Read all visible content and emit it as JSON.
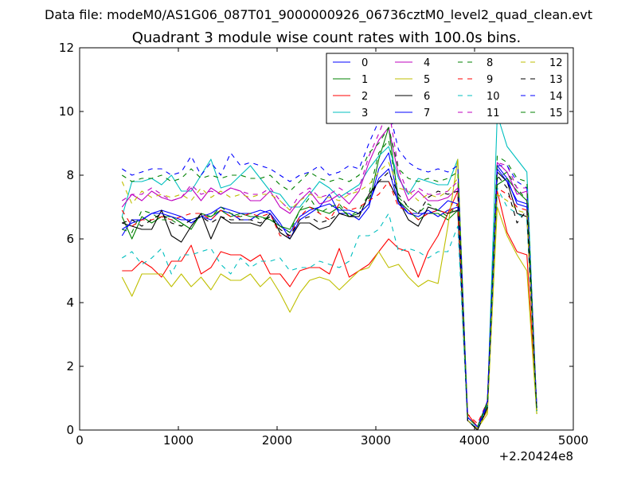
{
  "figure": {
    "suptitle": "Data file: modeM0/AS1G06_087T01_9000000926_06736cztM0_level2_quad_clean.evt"
  },
  "chart_data": {
    "type": "line",
    "title": "Quadrant 3 module wise count rates with 100.0s bins.",
    "xlabel": "",
    "ylabel": "",
    "xlim": [
      0,
      5000
    ],
    "ylim": [
      0,
      12
    ],
    "x_offset_label": "+2.20424e8",
    "x_ticks": [
      0,
      1000,
      2000,
      3000,
      4000,
      5000
    ],
    "x_tick_labels": [
      "0",
      "1000",
      "2000",
      "3000",
      "4000",
      "5000"
    ],
    "y_ticks": [
      0,
      2,
      4,
      6,
      8,
      10,
      12
    ],
    "y_tick_labels": [
      "0",
      "2",
      "4",
      "6",
      "8",
      "10",
      "12"
    ],
    "grid": false,
    "legend_position": "top-right",
    "x": [
      430,
      530,
      630,
      730,
      830,
      930,
      1030,
      1130,
      1230,
      1330,
      1430,
      1530,
      1630,
      1730,
      1830,
      1930,
      2030,
      2130,
      2230,
      2330,
      2430,
      2530,
      2630,
      2730,
      2830,
      2930,
      3030,
      3130,
      3230,
      3330,
      3430,
      3530,
      3630,
      3730,
      3830,
      3930,
      4030,
      4130,
      4230,
      4330,
      4430,
      4530,
      4630
    ],
    "series": [
      {
        "name": "0",
        "color": "#0000ff",
        "dash": "solid",
        "values": [
          6.1,
          6.6,
          6.6,
          6.8,
          6.9,
          6.8,
          6.7,
          6.5,
          6.7,
          6.6,
          6.9,
          6.8,
          6.6,
          6.6,
          6.8,
          6.9,
          6.5,
          6.0,
          6.6,
          6.8,
          7.0,
          7.4,
          6.8,
          6.8,
          6.6,
          7.0,
          8.2,
          8.7,
          7.2,
          6.8,
          6.7,
          6.9,
          6.7,
          6.9,
          7.0,
          0.3,
          0.05,
          0.9,
          8.3,
          7.9,
          7.1,
          7.0,
          0.7
        ]
      },
      {
        "name": "1",
        "color": "#008000",
        "dash": "solid",
        "values": [
          6.7,
          6.0,
          6.7,
          6.5,
          6.7,
          6.7,
          6.5,
          6.3,
          6.8,
          6.7,
          6.9,
          6.7,
          6.8,
          6.7,
          6.7,
          6.6,
          6.4,
          6.3,
          6.9,
          7.0,
          6.9,
          6.8,
          7.0,
          6.7,
          6.8,
          7.1,
          8.5,
          9.5,
          7.2,
          6.9,
          6.6,
          6.8,
          6.8,
          6.6,
          6.9,
          0.4,
          0.1,
          0.7,
          7.7,
          7.9,
          7.5,
          7.2,
          0.5
        ]
      },
      {
        "name": "2",
        "color": "#ff0000",
        "dash": "solid",
        "values": [
          5.0,
          5.0,
          5.3,
          5.1,
          4.8,
          5.3,
          5.3,
          5.8,
          4.9,
          5.1,
          5.6,
          5.5,
          5.5,
          5.3,
          5.5,
          4.9,
          4.9,
          4.5,
          5.0,
          5.1,
          5.1,
          4.9,
          5.7,
          4.8,
          5.0,
          5.2,
          5.6,
          6.0,
          5.7,
          5.6,
          4.8,
          5.6,
          6.1,
          6.8,
          7.5,
          0.5,
          0.1,
          0.6,
          7.5,
          6.2,
          5.6,
          5.5,
          0.6
        ]
      },
      {
        "name": "3",
        "color": "#00bfbf",
        "dash": "solid",
        "values": [
          6.7,
          7.8,
          7.8,
          7.9,
          7.7,
          8.0,
          7.5,
          7.5,
          8.0,
          8.5,
          7.6,
          7.7,
          8.0,
          8.3,
          7.9,
          7.5,
          7.4,
          7.0,
          7.0,
          7.4,
          7.8,
          7.6,
          7.3,
          7.5,
          7.7,
          8.2,
          8.6,
          8.9,
          7.9,
          7.4,
          7.9,
          7.8,
          7.7,
          7.7,
          8.5,
          0.3,
          0.05,
          0.8,
          9.9,
          8.9,
          8.5,
          8.1,
          0.6
        ]
      },
      {
        "name": "4",
        "color": "#bf00bf",
        "dash": "solid",
        "values": [
          7.0,
          7.4,
          7.2,
          7.5,
          7.3,
          7.2,
          7.3,
          7.6,
          7.2,
          7.6,
          7.4,
          7.6,
          7.5,
          7.2,
          7.2,
          7.5,
          7.0,
          6.8,
          7.2,
          7.5,
          7.1,
          7.2,
          7.4,
          7.1,
          7.5,
          8.4,
          9.1,
          9.5,
          8.0,
          7.2,
          7.5,
          7.2,
          7.2,
          7.3,
          7.6,
          0.4,
          0.1,
          0.9,
          8.4,
          8.1,
          7.4,
          7.5,
          0.7
        ]
      },
      {
        "name": "5",
        "color": "#bfbf00",
        "dash": "solid",
        "values": [
          4.8,
          4.2,
          4.9,
          4.9,
          4.9,
          4.5,
          4.9,
          4.5,
          4.8,
          4.4,
          4.9,
          4.7,
          4.7,
          4.9,
          4.5,
          4.8,
          4.3,
          3.7,
          4.3,
          4.7,
          4.8,
          4.7,
          4.4,
          4.7,
          5.0,
          5.1,
          5.6,
          5.1,
          5.2,
          4.8,
          4.5,
          4.7,
          4.6,
          6.4,
          8.5,
          0.3,
          0.05,
          0.5,
          7.0,
          6.1,
          5.5,
          5.0,
          0.5
        ]
      },
      {
        "name": "6",
        "color": "#000000",
        "dash": "solid",
        "values": [
          6.5,
          6.4,
          6.3,
          6.3,
          6.9,
          6.1,
          5.9,
          6.4,
          6.8,
          6.0,
          6.7,
          6.5,
          6.5,
          6.5,
          6.4,
          6.8,
          6.2,
          6.0,
          6.5,
          6.5,
          6.3,
          6.4,
          6.8,
          6.7,
          6.7,
          7.4,
          7.8,
          7.8,
          7.2,
          6.6,
          6.4,
          7.0,
          6.9,
          6.8,
          6.9,
          0.3,
          0.0,
          0.7,
          8.1,
          7.8,
          6.8,
          6.7,
          0.6
        ]
      },
      {
        "name": "7",
        "color": "#0000ff",
        "dash": "solid",
        "values": [
          6.3,
          6.5,
          6.6,
          6.8,
          6.8,
          6.7,
          6.6,
          6.6,
          6.7,
          6.8,
          7.0,
          6.9,
          6.8,
          6.8,
          6.9,
          6.8,
          6.4,
          6.2,
          6.7,
          6.9,
          7.0,
          7.1,
          6.9,
          6.9,
          6.8,
          7.1,
          7.9,
          8.2,
          7.1,
          6.8,
          6.8,
          6.8,
          6.9,
          7.2,
          7.1,
          0.3,
          0.05,
          0.8,
          8.2,
          7.8,
          7.2,
          7.1,
          0.7
        ]
      },
      {
        "name": "8",
        "color": "#008000",
        "dash": "dashed",
        "values": [
          6.3,
          6.2,
          6.9,
          6.8,
          6.6,
          6.6,
          6.4,
          6.6,
          6.7,
          6.7,
          7.0,
          6.8,
          6.7,
          6.8,
          6.6,
          6.7,
          6.4,
          6.2,
          6.9,
          7.3,
          6.8,
          7.0,
          7.1,
          6.7,
          6.9,
          7.4,
          8.7,
          9.1,
          7.3,
          7.0,
          6.8,
          7.1,
          6.9,
          6.7,
          7.1,
          0.4,
          0.1,
          0.8,
          7.9,
          8.1,
          7.6,
          7.2,
          0.6
        ]
      },
      {
        "name": "9",
        "color": "#ff0000",
        "dash": "dashed",
        "values": [
          6.9,
          6.4,
          6.6,
          6.6,
          6.7,
          6.6,
          6.7,
          6.8,
          6.8,
          6.6,
          6.9,
          6.7,
          6.7,
          6.8,
          6.7,
          6.8,
          6.1,
          6.1,
          6.7,
          7.0,
          6.8,
          6.6,
          7.1,
          6.9,
          7.0,
          7.2,
          7.4,
          7.8,
          7.0,
          6.9,
          6.6,
          6.8,
          6.9,
          6.8,
          7.1,
          0.5,
          0.2,
          0.9,
          7.6,
          7.4,
          7.0,
          6.9,
          0.7
        ]
      },
      {
        "name": "10",
        "color": "#00bfbf",
        "dash": "dashed",
        "values": [
          5.4,
          5.6,
          5.2,
          5.4,
          5.7,
          4.9,
          5.5,
          5.5,
          5.6,
          5.7,
          5.2,
          4.9,
          5.4,
          5.1,
          5.3,
          5.3,
          5.4,
          5.0,
          5.1,
          5.1,
          5.3,
          5.2,
          5.1,
          5.3,
          6.1,
          6.1,
          6.3,
          6.8,
          5.6,
          5.7,
          5.6,
          5.4,
          5.6,
          5.6,
          6.4,
          0.3,
          0.05,
          0.7,
          7.6,
          7.0,
          6.8,
          6.6,
          0.6
        ]
      },
      {
        "name": "11",
        "color": "#bf00bf",
        "dash": "dashed",
        "values": [
          7.2,
          7.4,
          7.4,
          7.6,
          7.4,
          7.2,
          7.3,
          7.7,
          7.4,
          7.5,
          7.4,
          7.6,
          7.5,
          7.4,
          7.4,
          7.6,
          7.2,
          6.9,
          7.4,
          7.6,
          7.3,
          7.4,
          7.6,
          7.4,
          7.6,
          8.6,
          9.3,
          10.1,
          8.2,
          7.4,
          7.6,
          7.4,
          7.4,
          7.5,
          7.8,
          0.4,
          0.1,
          0.9,
          8.4,
          8.3,
          7.6,
          7.6,
          0.7
        ]
      },
      {
        "name": "12",
        "color": "#bfbf00",
        "dash": "dashed",
        "values": [
          7.8,
          7.1,
          7.5,
          7.3,
          7.4,
          7.3,
          7.4,
          7.2,
          7.6,
          7.3,
          7.5,
          7.3,
          7.4,
          7.3,
          7.4,
          7.4,
          7.2,
          6.9,
          7.2,
          7.4,
          7.3,
          7.3,
          7.2,
          7.4,
          7.5,
          7.7,
          8.1,
          8.4,
          7.6,
          7.5,
          7.2,
          7.4,
          7.3,
          7.5,
          7.9,
          0.3,
          0.05,
          0.6,
          7.4,
          7.2,
          6.9,
          6.8,
          0.5
        ]
      },
      {
        "name": "13",
        "color": "#000000",
        "dash": "dashed",
        "values": [
          6.5,
          6.6,
          6.4,
          6.6,
          6.8,
          6.5,
          6.4,
          6.6,
          6.7,
          6.5,
          6.7,
          6.6,
          6.6,
          6.6,
          6.5,
          6.7,
          6.3,
          6.1,
          6.6,
          6.7,
          6.5,
          6.6,
          6.8,
          6.7,
          6.8,
          7.3,
          7.8,
          8.1,
          7.4,
          7.0,
          6.8,
          7.3,
          7.5,
          7.4,
          7.5,
          0.3,
          0.0,
          0.7,
          8.0,
          7.6,
          6.5,
          6.9,
          0.6
        ]
      },
      {
        "name": "14",
        "color": "#0000ff",
        "dash": "dashed",
        "values": [
          8.2,
          8.0,
          8.1,
          8.2,
          8.2,
          8.0,
          8.1,
          8.6,
          8.0,
          8.4,
          8.0,
          8.7,
          8.3,
          8.4,
          8.3,
          8.2,
          8.0,
          7.8,
          8.0,
          8.1,
          8.3,
          8.0,
          8.1,
          8.3,
          8.2,
          9.0,
          9.7,
          10.1,
          8.8,
          8.4,
          8.2,
          8.1,
          8.2,
          8.1,
          8.3,
          0.4,
          0.1,
          0.9,
          8.3,
          8.3,
          7.8,
          7.6,
          0.7
        ]
      },
      {
        "name": "15",
        "color": "#008000",
        "dash": "dashed",
        "values": [
          8.0,
          7.8,
          7.9,
          7.9,
          8.0,
          7.8,
          7.9,
          8.2,
          7.9,
          8.0,
          7.9,
          8.0,
          8.0,
          7.9,
          7.9,
          8.0,
          7.7,
          7.5,
          7.8,
          8.1,
          7.9,
          7.8,
          7.9,
          7.8,
          8.0,
          8.7,
          9.0,
          9.5,
          8.2,
          7.9,
          7.8,
          7.9,
          7.8,
          7.9,
          8.1,
          0.4,
          0.1,
          0.9,
          8.6,
          8.4,
          7.9,
          7.8,
          0.6
        ]
      }
    ]
  }
}
